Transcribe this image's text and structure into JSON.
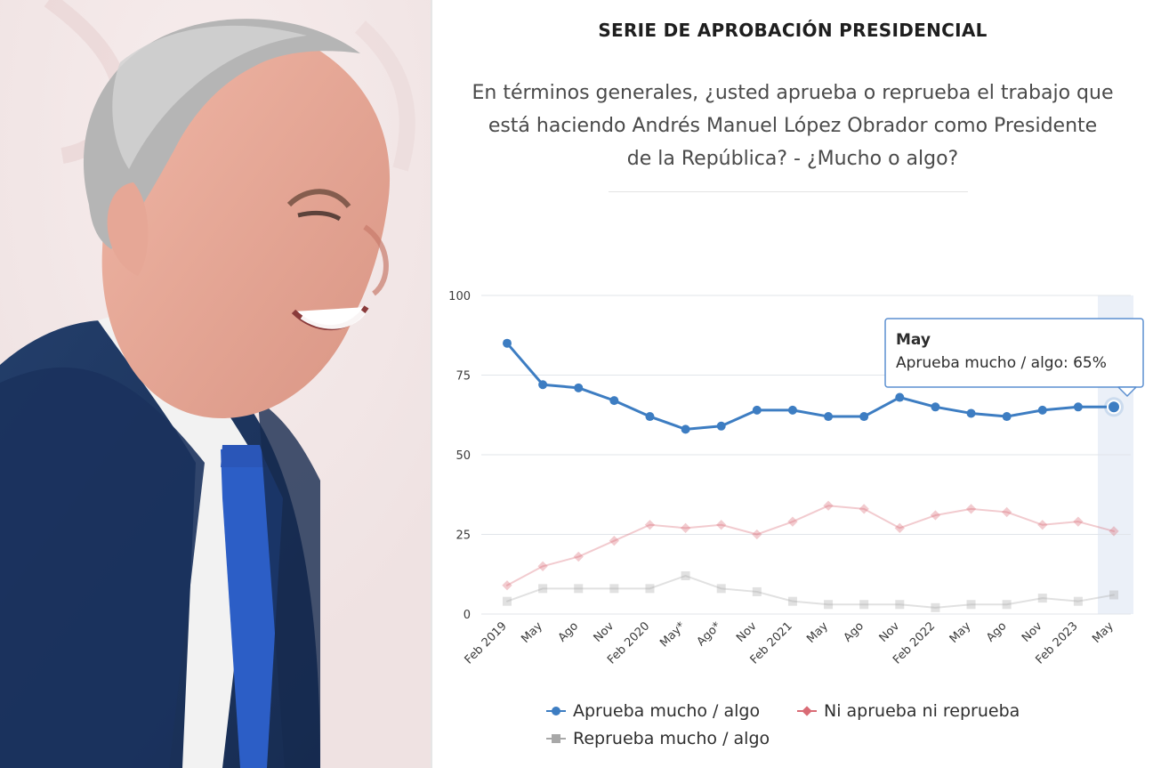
{
  "chart_header": {
    "title": "SERIE DE APROBACIÓN PRESIDENCIAL",
    "question_lines": [
      "En términos generales, ¿usted aprueba o reprueba el trabajo que",
      "está haciendo Andrés Manuel López Obrador como Presidente",
      "de la República? - ¿Mucho o algo?"
    ]
  },
  "chart_data": {
    "type": "line",
    "x": [
      "Feb 2019",
      "May",
      "Ago",
      "Nov",
      "Feb 2020",
      "May*",
      "Ago*",
      "Nov",
      "Feb 2021",
      "May",
      "Ago",
      "Nov",
      "Feb 2022",
      "May",
      "Ago",
      "Nov",
      "Feb 2023",
      "May"
    ],
    "ylim": [
      0,
      100
    ],
    "yticks": [
      0,
      25,
      50,
      75,
      100
    ],
    "grid": true,
    "legend_position": "bottom",
    "series": [
      {
        "name": "Aprueba mucho / algo",
        "color": "#3d7dc2",
        "marker": "circle",
        "values": [
          85,
          72,
          71,
          67,
          62,
          58,
          59,
          64,
          64,
          62,
          62,
          68,
          65,
          63,
          62,
          64,
          65,
          65
        ]
      },
      {
        "name": "Ni aprueba ni reprueba",
        "color": "#d96b75",
        "marker": "diamond",
        "values": [
          9,
          15,
          18,
          23,
          28,
          27,
          28,
          25,
          29,
          34,
          33,
          27,
          31,
          33,
          32,
          28,
          29,
          26
        ]
      },
      {
        "name": "Reprueba mucho / algo",
        "color": "#a8a8a8",
        "marker": "square",
        "values": [
          4,
          8,
          8,
          8,
          8,
          12,
          8,
          7,
          4,
          3,
          3,
          3,
          2,
          3,
          3,
          5,
          4,
          6
        ]
      }
    ],
    "tooltip": {
      "category": "May",
      "text": "Aprueba mucho / algo: 65%"
    }
  }
}
